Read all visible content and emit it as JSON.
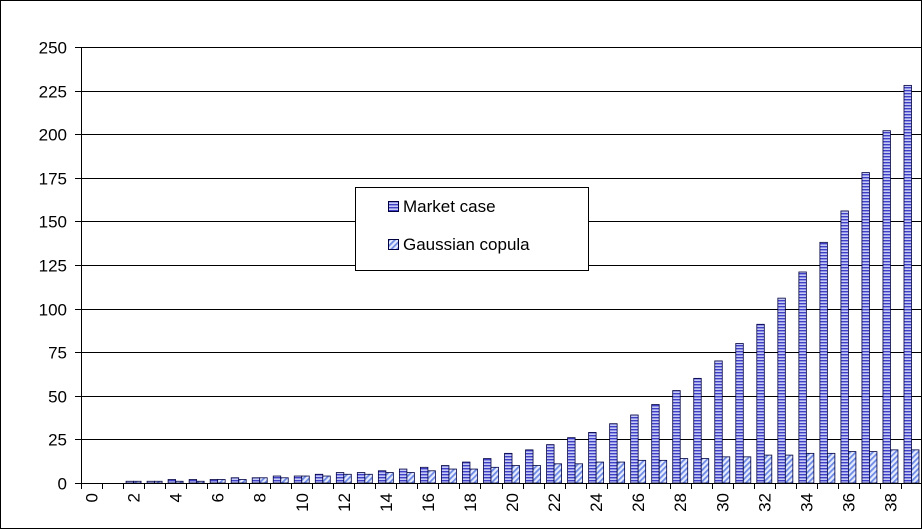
{
  "chart_data": {
    "type": "bar",
    "title": "",
    "xlabel": "",
    "ylabel": "",
    "ylim": [
      0,
      250
    ],
    "yticks": [
      0,
      25,
      50,
      75,
      100,
      125,
      150,
      175,
      200,
      225,
      250
    ],
    "categories": [
      "0",
      "1",
      "2",
      "3",
      "4",
      "5",
      "6",
      "7",
      "8",
      "9",
      "10",
      "11",
      "12",
      "13",
      "14",
      "15",
      "16",
      "17",
      "18",
      "19",
      "20",
      "21",
      "22",
      "23",
      "24",
      "25",
      "26",
      "27",
      "28",
      "29",
      "30",
      "31",
      "32",
      "33",
      "34",
      "35",
      "36",
      "37",
      "38",
      "39"
    ],
    "xtick_labels": [
      "0",
      "2",
      "4",
      "6",
      "8",
      "10",
      "12",
      "14",
      "16",
      "18",
      "20",
      "22",
      "24",
      "26",
      "28",
      "30",
      "32",
      "34",
      "36",
      "38"
    ],
    "grid": "horizontal",
    "legend_position": "center-left",
    "series": [
      {
        "name": "Market case",
        "pattern": "horizontal-stripes",
        "color": "#5a5ad8",
        "values": [
          0,
          0,
          1,
          1,
          2,
          2,
          2,
          3,
          3,
          4,
          4,
          5,
          6,
          6,
          7,
          8,
          9,
          10,
          12,
          14,
          17,
          19,
          22,
          26,
          29,
          34,
          39,
          45,
          53,
          60,
          70,
          80,
          91,
          106,
          121,
          138,
          156,
          178,
          202,
          228
        ]
      },
      {
        "name": "Gaussian copula",
        "pattern": "diagonal-stripes",
        "color": "#7a9ae8",
        "values": [
          0,
          0,
          1,
          1,
          1,
          1,
          2,
          2,
          3,
          3,
          4,
          4,
          5,
          5,
          6,
          6,
          7,
          8,
          8,
          9,
          10,
          10,
          11,
          11,
          12,
          12,
          13,
          13,
          14,
          14,
          15,
          15,
          16,
          16,
          17,
          17,
          18,
          18,
          19,
          19
        ]
      }
    ]
  }
}
